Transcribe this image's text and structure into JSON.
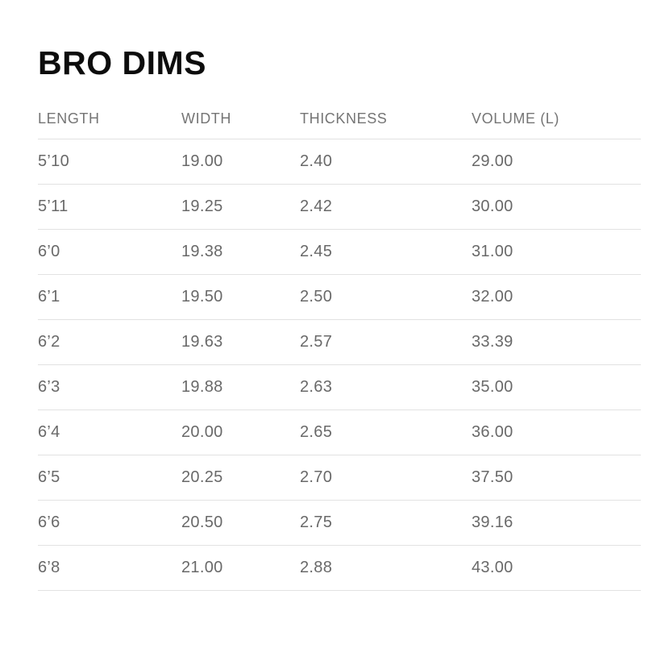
{
  "page": {
    "title": "BRO DIMS"
  },
  "table": {
    "columns": [
      "LENGTH",
      "WIDTH",
      "THICKNESS",
      "VOLUME (L)"
    ],
    "rows": [
      [
        "5’10",
        "19.00",
        "2.40",
        "29.00"
      ],
      [
        "5’11",
        "19.25",
        "2.42",
        "30.00"
      ],
      [
        "6’0",
        "19.38",
        "2.45",
        "31.00"
      ],
      [
        "6’1",
        "19.50",
        "2.50",
        "32.00"
      ],
      [
        "6’2",
        "19.63",
        "2.57",
        "33.39"
      ],
      [
        "6’3",
        "19.88",
        "2.63",
        "35.00"
      ],
      [
        "6’4",
        "20.00",
        "2.65",
        "36.00"
      ],
      [
        "6’5",
        "20.25",
        "2.70",
        "37.50"
      ],
      [
        "6’6",
        "20.50",
        "2.75",
        "39.16"
      ],
      [
        "6’8",
        "21.00",
        "2.88",
        "43.00"
      ]
    ]
  },
  "colors": {
    "background": "#ffffff",
    "title_text": "#0d0d0d",
    "header_text": "#757575",
    "cell_text": "#696969",
    "divider": "#e2e2e2"
  }
}
